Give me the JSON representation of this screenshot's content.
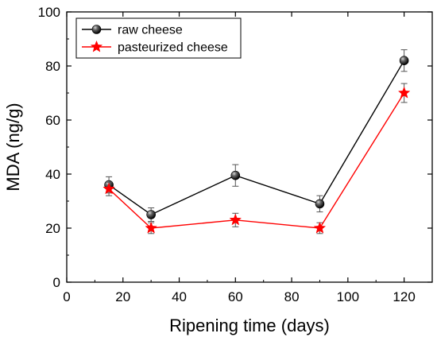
{
  "chart_data": {
    "type": "line",
    "title": "",
    "xlabel": "Ripening time (days)",
    "ylabel": "MDA (ng/g)",
    "xlim": [
      0,
      130
    ],
    "ylim": [
      0,
      100
    ],
    "xticks": [
      0,
      20,
      40,
      60,
      80,
      100,
      120
    ],
    "yticks": [
      0,
      20,
      40,
      60,
      80,
      100
    ],
    "grid": false,
    "legend_position": "top-left",
    "x": [
      15,
      30,
      60,
      90,
      120
    ],
    "series": [
      {
        "name": "raw cheese",
        "values": [
          36,
          25,
          39.5,
          29,
          82
        ],
        "errors": [
          3,
          2.5,
          4,
          3,
          4
        ],
        "color": "#000000",
        "marker": "sphere"
      },
      {
        "name": "pasteurized cheese",
        "values": [
          34.5,
          20,
          23,
          20,
          70
        ],
        "errors": [
          2.5,
          2,
          2.5,
          2,
          3.5
        ],
        "color": "#ff0000",
        "marker": "star"
      }
    ]
  }
}
